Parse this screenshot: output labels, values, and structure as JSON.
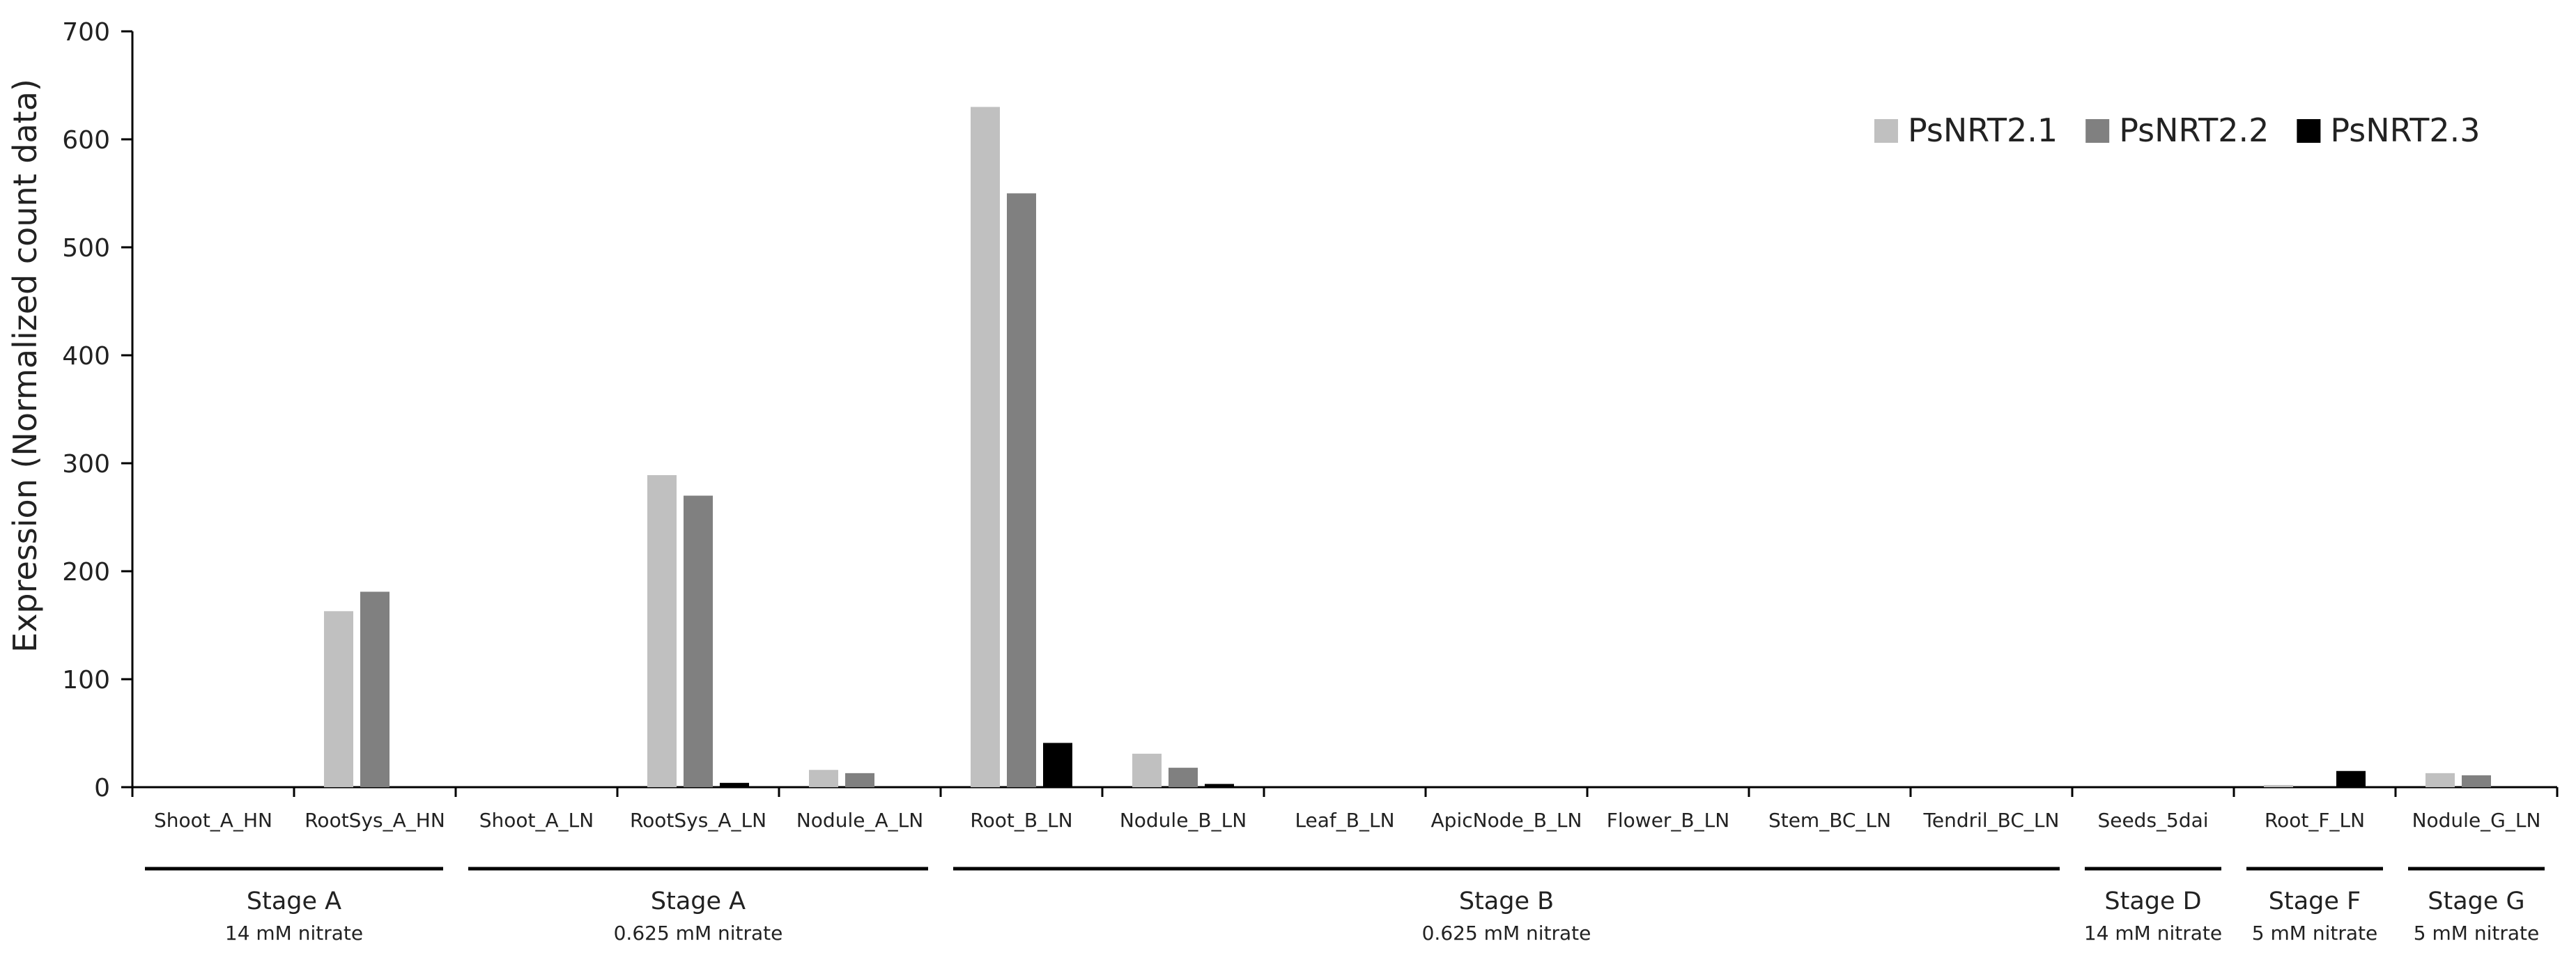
{
  "chart_data": {
    "type": "bar",
    "title": "",
    "xlabel": "",
    "ylabel": "Expression (Normalized count data)",
    "ylim": [
      0,
      700
    ],
    "yticks": [
      0,
      100,
      200,
      300,
      400,
      500,
      600,
      700
    ],
    "grid": false,
    "legend_position": "top-right",
    "categories": [
      "Shoot_A_HN",
      "RootSys_A_HN",
      "Shoot_A_LN",
      "RootSys_A_LN",
      "Nodule_A_LN",
      "Root_B_LN",
      "Nodule_B_LN",
      "Leaf_B_LN",
      "ApicNode_B_LN",
      "Flower_B_LN",
      "Stem_BC_LN",
      "Tendril_BC_LN",
      "Seeds_5dai",
      "Root_F_LN",
      "Nodule_G_LN"
    ],
    "series": [
      {
        "name": "PsNRT2.1",
        "color": "#c0c0c0",
        "values": [
          0,
          163,
          0,
          289,
          16,
          630,
          31,
          0,
          0,
          0,
          0,
          0,
          0,
          2,
          13
        ]
      },
      {
        "name": "PsNRT2.2",
        "color": "#808080",
        "values": [
          0,
          181,
          0,
          270,
          13,
          550,
          18,
          0,
          0,
          0,
          0,
          0,
          0,
          0,
          11
        ]
      },
      {
        "name": "PsNRT2.3",
        "color": "#000000",
        "values": [
          0,
          0,
          0,
          4,
          0,
          41,
          3,
          0,
          0,
          0,
          0,
          0,
          0,
          15,
          0
        ]
      }
    ],
    "stage_groups": [
      {
        "label": "Stage A",
        "sublabel": "14 mM nitrate",
        "from": 0,
        "to": 1
      },
      {
        "label": "Stage A",
        "sublabel": "0.625 mM nitrate",
        "from": 2,
        "to": 4
      },
      {
        "label": "Stage B",
        "sublabel": "0.625 mM nitrate",
        "from": 5,
        "to": 11
      },
      {
        "label": "Stage D",
        "sublabel": "14 mM nitrate",
        "from": 12,
        "to": 12
      },
      {
        "label": "Stage F",
        "sublabel": "5 mM nitrate",
        "from": 13,
        "to": 13
      },
      {
        "label": "Stage G",
        "sublabel": "5 mM nitrate",
        "from": 14,
        "to": 14
      }
    ]
  }
}
